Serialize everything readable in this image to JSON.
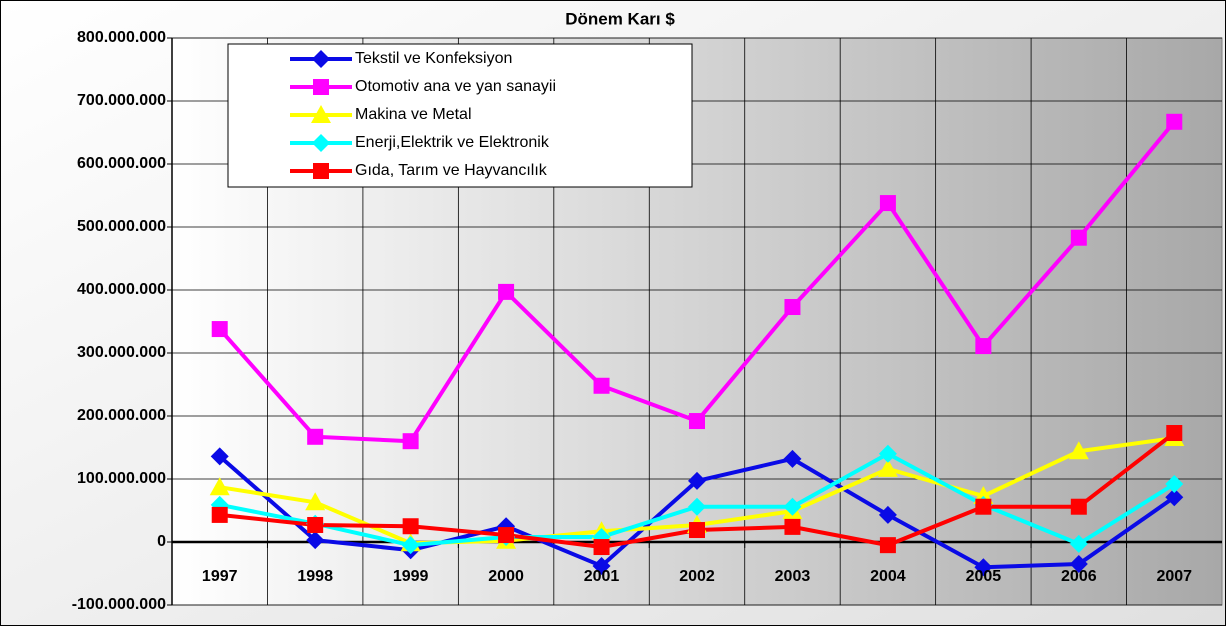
{
  "chart_data": {
    "type": "line",
    "title": "Dönem Karı $",
    "categories": [
      "1997",
      "1998",
      "1999",
      "2000",
      "2001",
      "2002",
      "2003",
      "2004",
      "2005",
      "2006",
      "2007"
    ],
    "series": [
      {
        "name": "Tekstil ve Konfeksiyon",
        "color": "#0a0ae6",
        "marker": "diamond",
        "values": [
          136000000,
          3000000,
          -13000000,
          25000000,
          -38000000,
          97000000,
          132000000,
          43000000,
          -40000000,
          -35000000,
          71000000
        ]
      },
      {
        "name": "Otomotiv ana ve yan sanayii",
        "color": "#ff00ff",
        "marker": "square",
        "values": [
          338000000,
          167000000,
          160000000,
          397000000,
          248000000,
          192000000,
          373000000,
          538000000,
          311000000,
          483000000,
          667000000
        ]
      },
      {
        "name": "Makina ve Metal",
        "color": "#ffff00",
        "marker": "triangle",
        "values": [
          87000000,
          63000000,
          -2000000,
          2000000,
          17000000,
          27000000,
          49000000,
          116000000,
          73000000,
          144000000,
          165000000
        ]
      },
      {
        "name": "Enerji,Elektrik ve Elektronik",
        "color": "#00ffff",
        "marker": "diamond",
        "values": [
          59000000,
          29000000,
          -5000000,
          8000000,
          8000000,
          56000000,
          56000000,
          140000000,
          59000000,
          -3000000,
          92000000
        ]
      },
      {
        "name": "Gıda, Tarım ve Hayvancılık",
        "color": "#ff0000",
        "marker": "square",
        "values": [
          43000000,
          27000000,
          25000000,
          11000000,
          -8000000,
          19000000,
          24000000,
          -5000000,
          56000000,
          56000000,
          173000000
        ]
      }
    ],
    "ylim": [
      -100000000,
      800000000
    ],
    "yticks": [
      {
        "value": -100000000,
        "label": "-100.000.000"
      },
      0,
      {
        "value": 100000000,
        "label": "100.000.000"
      },
      {
        "value": 200000000,
        "label": "200.000.000"
      },
      {
        "value": 300000000,
        "label": "300.000.000"
      },
      {
        "value": 400000000,
        "label": "400.000.000"
      },
      {
        "value": 500000000,
        "label": "500.000.000"
      },
      {
        "value": 600000000,
        "label": "600.000.000"
      },
      {
        "value": 700000000,
        "label": "700.000.000"
      },
      {
        "value": 800000000,
        "label": "800.000.000"
      }
    ],
    "grid": true,
    "legend": "top-left"
  }
}
